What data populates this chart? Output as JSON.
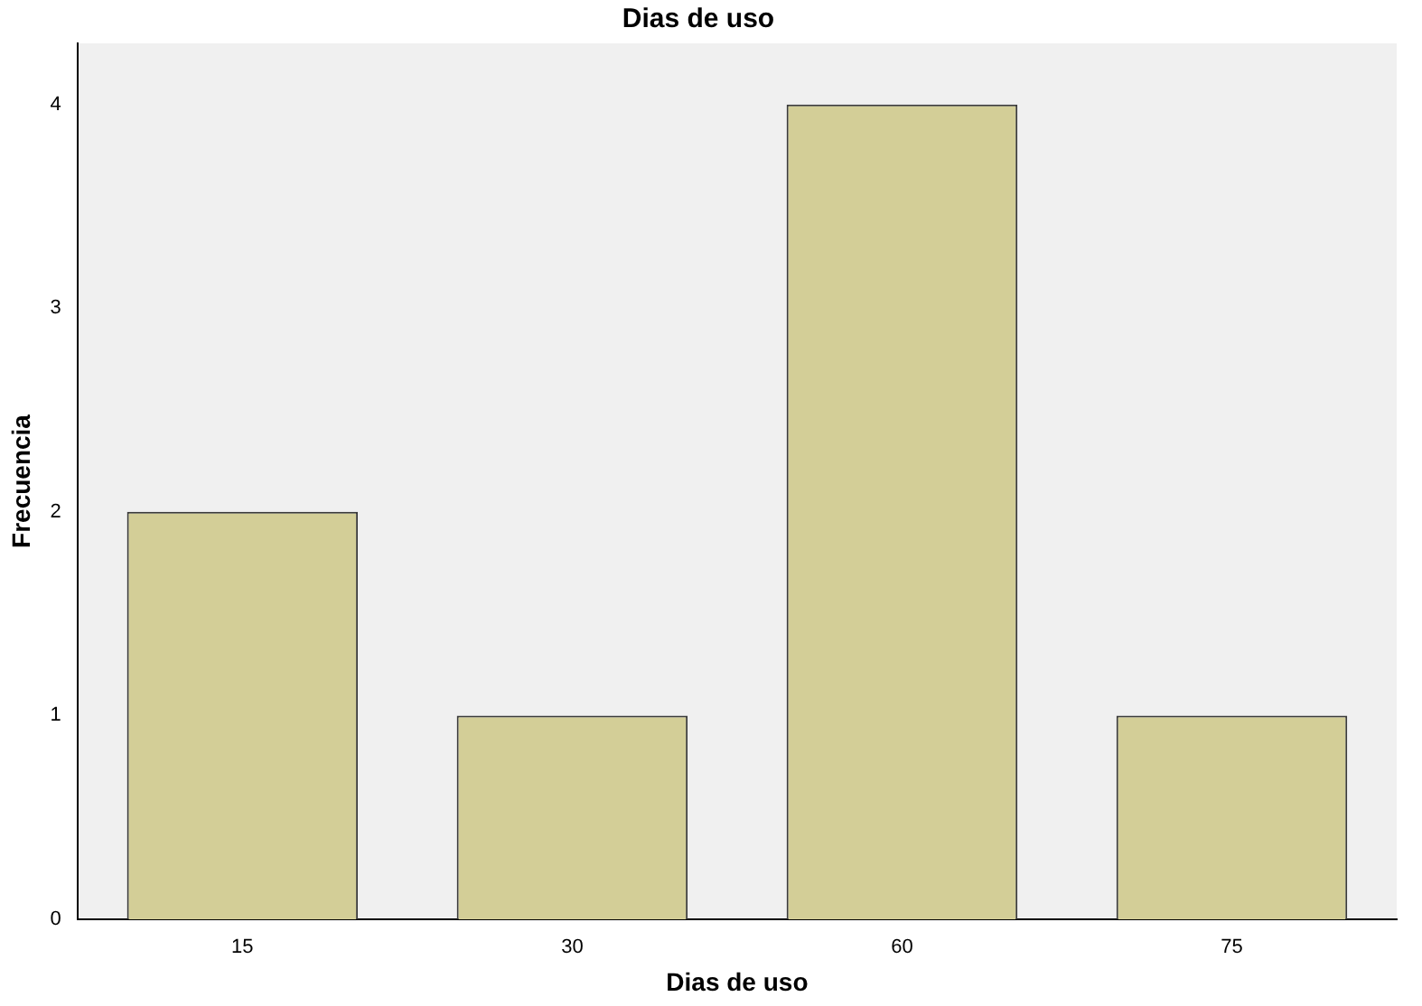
{
  "chart_data": {
    "type": "bar",
    "title": "Dias de uso",
    "xlabel": "Dias de uso",
    "ylabel": "Frecuencia",
    "categories": [
      "15",
      "30",
      "60",
      "75"
    ],
    "values": [
      2,
      1,
      4,
      1
    ],
    "color": "#d3ce97",
    "ylim": [
      0,
      4.3
    ],
    "yticks": [
      0,
      1,
      2,
      3,
      4
    ],
    "grid": false
  }
}
